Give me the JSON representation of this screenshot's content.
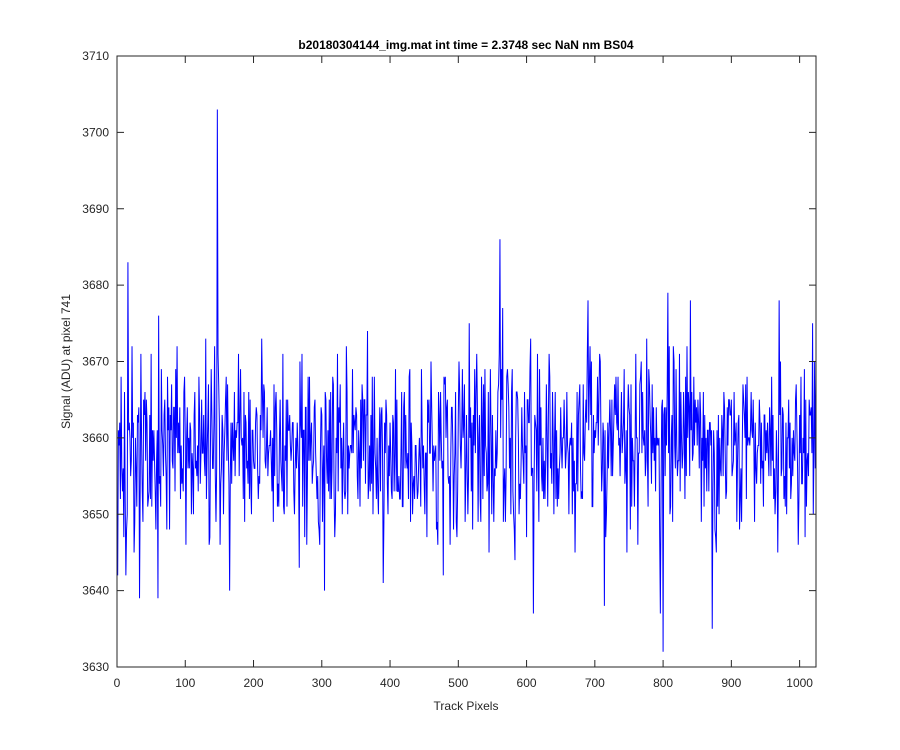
{
  "chart_data": {
    "type": "line",
    "title": "b20180304144_img.mat int time = 2.3748 sec  NaN nm BS04",
    "xlabel": "Track Pixels",
    "ylabel": "Signal (ADU) at pixel 741",
    "xlim": [
      0,
      1024
    ],
    "ylim": [
      3630,
      3710
    ],
    "xticks": [
      0,
      100,
      200,
      300,
      400,
      500,
      600,
      700,
      800,
      900,
      1000
    ],
    "yticks": [
      3630,
      3640,
      3650,
      3660,
      3670,
      3680,
      3690,
      3700,
      3710
    ],
    "grid": false,
    "legend": "none",
    "series": [
      {
        "color": "#0000ff",
        "x_start": 1,
        "x_step": 1,
        "baseline": 3659,
        "noise_amplitude": 6,
        "min": 3632,
        "max": 3703,
        "peaks": [
          {
            "x": 16,
            "y": 3683
          },
          {
            "x": 33,
            "y": 3639
          },
          {
            "x": 60,
            "y": 3639
          },
          {
            "x": 147,
            "y": 3703
          },
          {
            "x": 165,
            "y": 3640
          },
          {
            "x": 304,
            "y": 3640
          },
          {
            "x": 390,
            "y": 3641
          },
          {
            "x": 561,
            "y": 3686
          },
          {
            "x": 610,
            "y": 3637
          },
          {
            "x": 690,
            "y": 3678
          },
          {
            "x": 714,
            "y": 3638
          },
          {
            "x": 796,
            "y": 3637
          },
          {
            "x": 800,
            "y": 3632
          },
          {
            "x": 807,
            "y": 3679
          },
          {
            "x": 840,
            "y": 3678
          },
          {
            "x": 872,
            "y": 3635
          },
          {
            "x": 970,
            "y": 3678
          }
        ]
      }
    ]
  }
}
